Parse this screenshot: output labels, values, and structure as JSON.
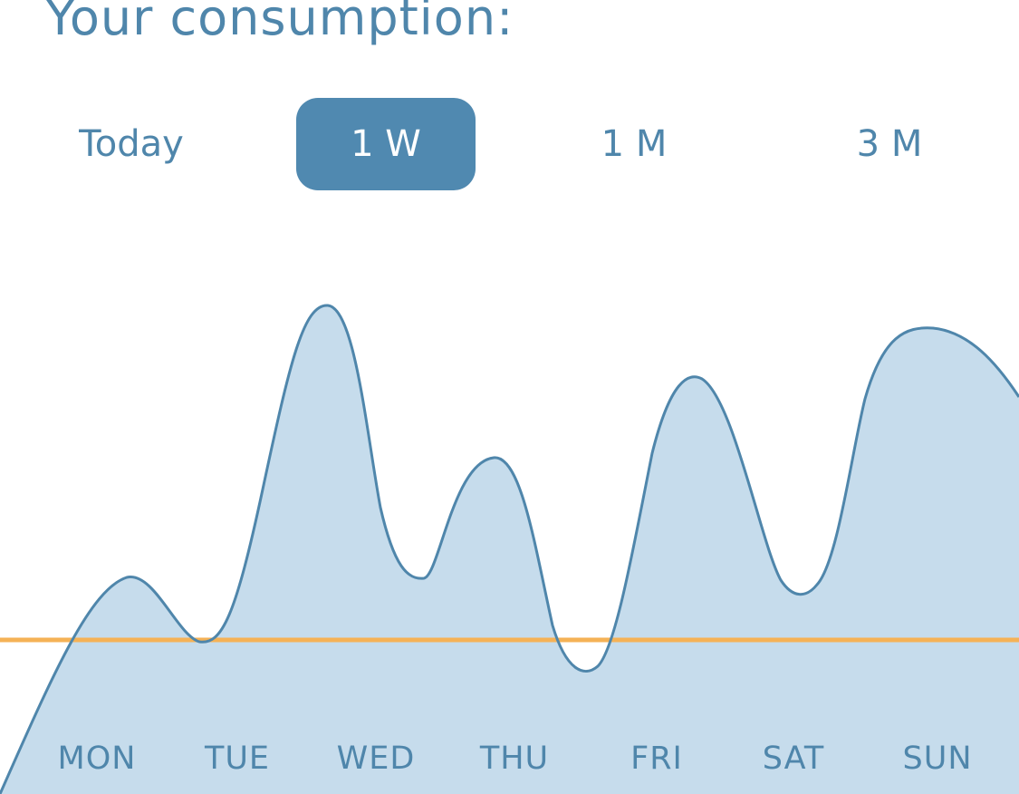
{
  "header": {
    "title": "Your consumption:"
  },
  "range_tabs": {
    "selected": "1 W",
    "items": [
      {
        "id": "today",
        "label": "Today"
      },
      {
        "id": "1w",
        "label": "1 W"
      },
      {
        "id": "1m",
        "label": "1 M"
      },
      {
        "id": "3m",
        "label": "3 M"
      }
    ]
  },
  "colors": {
    "accent": "#5089b0",
    "text": "#4f86ab",
    "area_fill": "#c6dcec",
    "area_stroke": "#4f86ab",
    "reference_line": "#f5b256",
    "background": "#ffffff"
  },
  "chart_data": {
    "type": "area",
    "categories": [
      "MON",
      "TUE",
      "WED",
      "THU",
      "FRI",
      "SAT",
      "SUN"
    ],
    "y_axis_visible": false,
    "grid": false,
    "legend": "none",
    "smoothing": "spline"
  }
}
